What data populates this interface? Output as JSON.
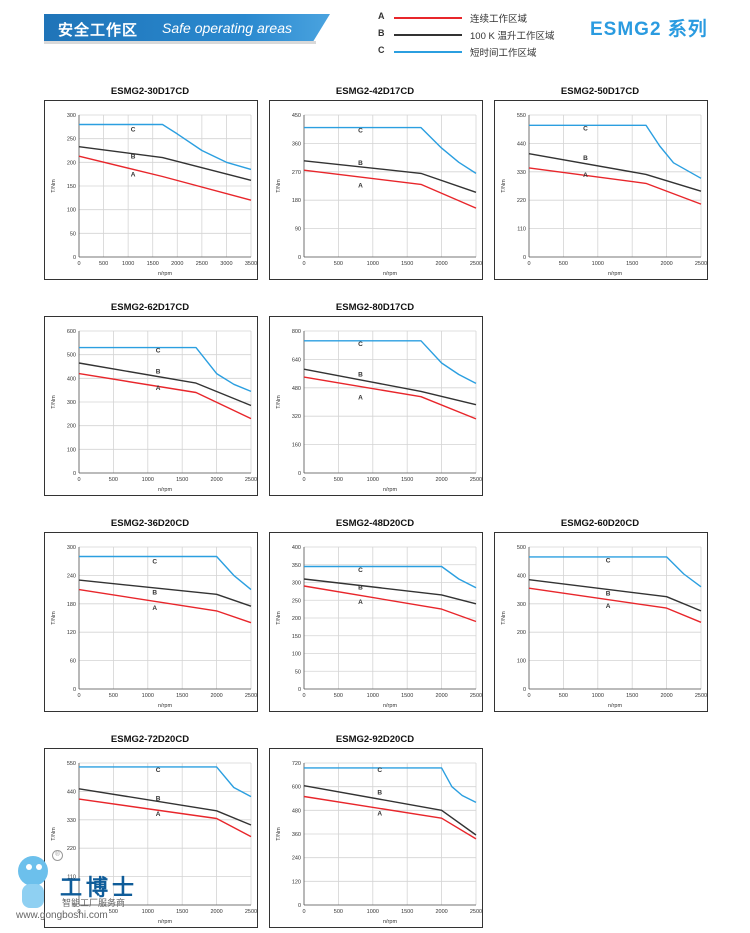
{
  "header": {
    "title_cn": "安全工作区",
    "title_en": "Safe operating areas",
    "series_title": "ESMG2 系列"
  },
  "legend": [
    {
      "key": "A",
      "text": "连续工作区域",
      "color": "#e8262b"
    },
    {
      "key": "B",
      "text": "100 K 温升工作区域",
      "color": "#333333"
    },
    {
      "key": "C",
      "text": "短时间工作区域",
      "color": "#2b9fe0"
    }
  ],
  "watermark": {
    "name": "工博士",
    "subtitle": "智能工厂服务商",
    "url": "www.gongboshi.com",
    "mark": "®"
  },
  "chart_data": [
    {
      "type": "line",
      "title": "ESMG2-30D17CD",
      "xlabel": "n/rpm",
      "ylabel": "T/Nm",
      "xlim": [
        0,
        3500
      ],
      "ylim": [
        0,
        300
      ],
      "xticks": [
        0,
        500,
        1000,
        1500,
        2000,
        2500,
        3000,
        3500
      ],
      "yticks": [
        0,
        50,
        100,
        150,
        200,
        250,
        300
      ],
      "series": [
        {
          "name": "A",
          "color": "#e8262b",
          "x": [
            0,
            1700,
            3500
          ],
          "y": [
            213,
            170,
            120
          ]
        },
        {
          "name": "B",
          "color": "#333333",
          "x": [
            0,
            1700,
            3500
          ],
          "y": [
            233,
            210,
            162
          ]
        },
        {
          "name": "C",
          "color": "#2b9fe0",
          "x": [
            0,
            1700,
            2000,
            2500,
            3000,
            3500
          ],
          "y": [
            280,
            280,
            260,
            225,
            200,
            185
          ]
        }
      ],
      "labels": [
        {
          "text": "C",
          "x": 1100,
          "y": 265
        },
        {
          "text": "B",
          "x": 1100,
          "y": 208
        },
        {
          "text": "A",
          "x": 1100,
          "y": 170
        }
      ]
    },
    {
      "type": "line",
      "title": "ESMG2-42D17CD",
      "xlabel": "n/rpm",
      "ylabel": "T/Nm",
      "xlim": [
        0,
        2500
      ],
      "ylim": [
        0,
        450
      ],
      "xticks": [
        0,
        500,
        1000,
        1500,
        2000,
        2500
      ],
      "yticks": [
        0,
        90,
        180,
        270,
        360,
        450
      ],
      "series": [
        {
          "name": "A",
          "color": "#e8262b",
          "x": [
            0,
            1700,
            2500
          ],
          "y": [
            275,
            230,
            155
          ]
        },
        {
          "name": "B",
          "color": "#333333",
          "x": [
            0,
            1700,
            2500
          ],
          "y": [
            305,
            265,
            205
          ]
        },
        {
          "name": "C",
          "color": "#2b9fe0",
          "x": [
            0,
            1700,
            2000,
            2250,
            2500
          ],
          "y": [
            410,
            410,
            345,
            300,
            265
          ]
        }
      ],
      "labels": [
        {
          "text": "C",
          "x": 820,
          "y": 395
        },
        {
          "text": "B",
          "x": 820,
          "y": 292
        },
        {
          "text": "A",
          "x": 820,
          "y": 220
        }
      ]
    },
    {
      "type": "line",
      "title": "ESMG2-50D17CD",
      "xlabel": "n/rpm",
      "ylabel": "T/Nm",
      "xlim": [
        0,
        2500
      ],
      "ylim": [
        0,
        550
      ],
      "xticks": [
        0,
        500,
        1000,
        1500,
        2000,
        2500
      ],
      "yticks": [
        0,
        110,
        220,
        330,
        440,
        550
      ],
      "series": [
        {
          "name": "A",
          "color": "#e8262b",
          "x": [
            0,
            1700,
            2500
          ],
          "y": [
            345,
            285,
            205
          ]
        },
        {
          "name": "B",
          "color": "#333333",
          "x": [
            0,
            1700,
            2500
          ],
          "y": [
            400,
            320,
            255
          ]
        },
        {
          "name": "C",
          "color": "#2b9fe0",
          "x": [
            0,
            1700,
            1900,
            2100,
            2500
          ],
          "y": [
            510,
            510,
            430,
            365,
            305
          ]
        }
      ],
      "labels": [
        {
          "text": "C",
          "x": 820,
          "y": 490
        },
        {
          "text": "B",
          "x": 820,
          "y": 375
        },
        {
          "text": "A",
          "x": 820,
          "y": 310
        }
      ]
    },
    {
      "type": "line",
      "title": "ESMG2-62D17CD",
      "xlabel": "n/rpm",
      "ylabel": "T/Nm",
      "xlim": [
        0,
        2500
      ],
      "ylim": [
        0,
        600
      ],
      "xticks": [
        0,
        500,
        1000,
        1500,
        2000,
        2500
      ],
      "yticks": [
        0,
        100,
        200,
        300,
        400,
        500,
        600
      ],
      "series": [
        {
          "name": "A",
          "color": "#e8262b",
          "x": [
            0,
            1700,
            2500
          ],
          "y": [
            420,
            340,
            230
          ]
        },
        {
          "name": "B",
          "color": "#333333",
          "x": [
            0,
            1700,
            2500
          ],
          "y": [
            465,
            380,
            285
          ]
        },
        {
          "name": "C",
          "color": "#2b9fe0",
          "x": [
            0,
            1700,
            2000,
            2250,
            2500
          ],
          "y": [
            530,
            530,
            420,
            375,
            345
          ]
        }
      ],
      "labels": [
        {
          "text": "C",
          "x": 1150,
          "y": 510
        },
        {
          "text": "B",
          "x": 1150,
          "y": 420
        },
        {
          "text": "A",
          "x": 1150,
          "y": 350
        }
      ]
    },
    {
      "type": "line",
      "title": "ESMG2-80D17CD",
      "xlabel": "n/rpm",
      "ylabel": "T/Nm",
      "xlim": [
        0,
        2500
      ],
      "ylim": [
        0,
        800
      ],
      "xticks": [
        0,
        500,
        1000,
        1500,
        2000,
        2500
      ],
      "yticks": [
        0,
        160,
        320,
        480,
        640,
        800
      ],
      "series": [
        {
          "name": "A",
          "color": "#e8262b",
          "x": [
            0,
            1700,
            2500
          ],
          "y": [
            540,
            430,
            305
          ]
        },
        {
          "name": "B",
          "color": "#333333",
          "x": [
            0,
            1700,
            2500
          ],
          "y": [
            585,
            460,
            385
          ]
        },
        {
          "name": "C",
          "color": "#2b9fe0",
          "x": [
            0,
            1700,
            2000,
            2250,
            2500
          ],
          "y": [
            745,
            745,
            620,
            555,
            505
          ]
        }
      ],
      "labels": [
        {
          "text": "C",
          "x": 820,
          "y": 715
        },
        {
          "text": "B",
          "x": 820,
          "y": 545
        },
        {
          "text": "A",
          "x": 820,
          "y": 415
        }
      ]
    },
    {
      "type": "line",
      "title": "ESMG2-36D20CD",
      "xlabel": "n/rpm",
      "ylabel": "T/Nm",
      "xlim": [
        0,
        2500
      ],
      "ylim": [
        0,
        300
      ],
      "xticks": [
        0,
        500,
        1000,
        1500,
        2000,
        2500
      ],
      "yticks": [
        0,
        60,
        120,
        180,
        240,
        300
      ],
      "series": [
        {
          "name": "A",
          "color": "#e8262b",
          "x": [
            0,
            2000,
            2500
          ],
          "y": [
            210,
            165,
            140
          ]
        },
        {
          "name": "B",
          "color": "#333333",
          "x": [
            0,
            2000,
            2500
          ],
          "y": [
            230,
            200,
            175
          ]
        },
        {
          "name": "C",
          "color": "#2b9fe0",
          "x": [
            0,
            2000,
            2250,
            2500
          ],
          "y": [
            280,
            280,
            240,
            210
          ]
        }
      ],
      "labels": [
        {
          "text": "C",
          "x": 1100,
          "y": 265
        },
        {
          "text": "B",
          "x": 1100,
          "y": 200
        },
        {
          "text": "A",
          "x": 1100,
          "y": 167
        }
      ]
    },
    {
      "type": "line",
      "title": "ESMG2-48D20CD",
      "xlabel": "n/rpm",
      "ylabel": "T/Nm",
      "xlim": [
        0,
        2500
      ],
      "ylim": [
        0,
        400
      ],
      "xticks": [
        0,
        500,
        1000,
        1500,
        2000,
        2500
      ],
      "yticks": [
        0,
        50,
        100,
        150,
        200,
        250,
        300,
        350,
        400
      ],
      "series": [
        {
          "name": "A",
          "color": "#e8262b",
          "x": [
            0,
            2000,
            2500
          ],
          "y": [
            290,
            225,
            190
          ]
        },
        {
          "name": "B",
          "color": "#333333",
          "x": [
            0,
            2000,
            2500
          ],
          "y": [
            310,
            265,
            240
          ]
        },
        {
          "name": "C",
          "color": "#2b9fe0",
          "x": [
            0,
            2000,
            2250,
            2500
          ],
          "y": [
            345,
            345,
            310,
            285
          ]
        }
      ],
      "labels": [
        {
          "text": "C",
          "x": 820,
          "y": 330
        },
        {
          "text": "B",
          "x": 820,
          "y": 280
        },
        {
          "text": "A",
          "x": 820,
          "y": 240
        }
      ]
    },
    {
      "type": "line",
      "title": "ESMG2-60D20CD",
      "xlabel": "n/rpm",
      "ylabel": "T/Nm",
      "xlim": [
        0,
        2500
      ],
      "ylim": [
        0,
        500
      ],
      "xticks": [
        0,
        500,
        1000,
        1500,
        2000,
        2500
      ],
      "yticks": [
        0,
        100,
        200,
        300,
        400,
        500
      ],
      "series": [
        {
          "name": "A",
          "color": "#e8262b",
          "x": [
            0,
            2000,
            2500
          ],
          "y": [
            355,
            285,
            235
          ]
        },
        {
          "name": "B",
          "color": "#333333",
          "x": [
            0,
            2000,
            2500
          ],
          "y": [
            385,
            325,
            275
          ]
        },
        {
          "name": "C",
          "color": "#2b9fe0",
          "x": [
            0,
            2000,
            2250,
            2500
          ],
          "y": [
            465,
            465,
            405,
            360
          ]
        }
      ],
      "labels": [
        {
          "text": "C",
          "x": 1150,
          "y": 445
        },
        {
          "text": "B",
          "x": 1150,
          "y": 330
        },
        {
          "text": "A",
          "x": 1150,
          "y": 285
        }
      ]
    },
    {
      "type": "line",
      "title": "ESMG2-72D20CD",
      "xlabel": "n/rpm",
      "ylabel": "T/Nm",
      "xlim": [
        0,
        2500
      ],
      "ylim": [
        0,
        550
      ],
      "xticks": [
        0,
        500,
        1000,
        1500,
        2000,
        2500
      ],
      "yticks": [
        0,
        110,
        220,
        330,
        440,
        550
      ],
      "series": [
        {
          "name": "A",
          "color": "#e8262b",
          "x": [
            0,
            2000,
            2500
          ],
          "y": [
            410,
            335,
            265
          ]
        },
        {
          "name": "B",
          "color": "#333333",
          "x": [
            0,
            2000,
            2500
          ],
          "y": [
            450,
            365,
            310
          ]
        },
        {
          "name": "C",
          "color": "#2b9fe0",
          "x": [
            0,
            2000,
            2250,
            2500
          ],
          "y": [
            535,
            535,
            455,
            420
          ]
        }
      ],
      "labels": [
        {
          "text": "C",
          "x": 1150,
          "y": 515
        },
        {
          "text": "B",
          "x": 1150,
          "y": 405
        },
        {
          "text": "A",
          "x": 1150,
          "y": 345
        }
      ]
    },
    {
      "type": "line",
      "title": "ESMG2-92D20CD",
      "xlabel": "n/rpm",
      "ylabel": "T/Nm",
      "xlim": [
        0,
        2500
      ],
      "ylim": [
        0,
        720
      ],
      "xticks": [
        0,
        500,
        1000,
        1500,
        2000,
        2500
      ],
      "yticks": [
        0,
        120,
        240,
        360,
        480,
        600,
        720
      ],
      "series": [
        {
          "name": "A",
          "color": "#e8262b",
          "x": [
            0,
            2000,
            2500
          ],
          "y": [
            550,
            440,
            335
          ]
        },
        {
          "name": "B",
          "color": "#333333",
          "x": [
            0,
            2000,
            2500
          ],
          "y": [
            605,
            480,
            355
          ]
        },
        {
          "name": "C",
          "color": "#2b9fe0",
          "x": [
            0,
            2000,
            2150,
            2300,
            2500
          ],
          "y": [
            695,
            695,
            600,
            555,
            520
          ]
        }
      ],
      "labels": [
        {
          "text": "C",
          "x": 1100,
          "y": 675
        },
        {
          "text": "B",
          "x": 1100,
          "y": 560
        },
        {
          "text": "A",
          "x": 1100,
          "y": 455
        }
      ]
    }
  ]
}
